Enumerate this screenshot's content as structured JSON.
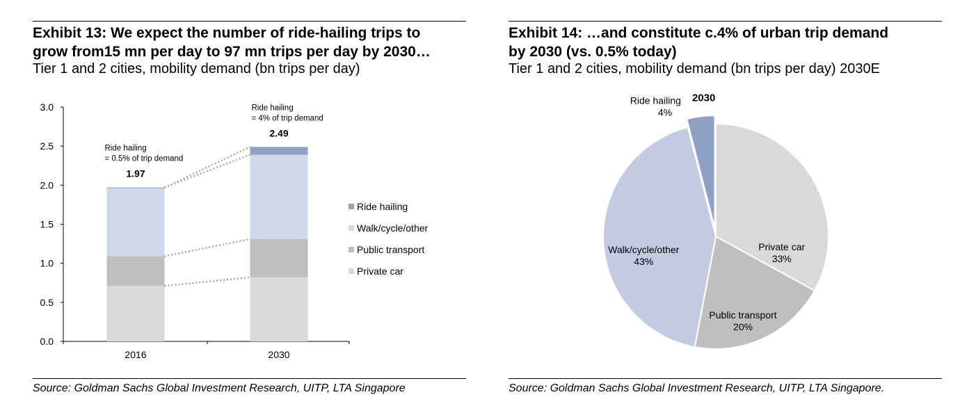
{
  "left": {
    "title_line1": "Exhibit 13: We expect the number of ride-hailing trips to",
    "title_line2": "grow from15 mn per day to 97 mn trips per day by 2030…",
    "subtitle": "Tier 1 and 2 cities, mobility demand (bn trips per day)",
    "source": "Source: Goldman Sachs Global Investment Research, UITP, LTA Singapore"
  },
  "right": {
    "title_line1": "Exhibit 14: …and constitute c.4% of urban trip demand",
    "title_line2": "by 2030 (vs. 0.5% today)",
    "subtitle": "Tier 1 and 2 cities, mobility demand (bn trips per day) 2030E",
    "source": "Source: Goldman Sachs Global Investment Research, UITP, LTA Singapore."
  },
  "chart_data": [
    {
      "type": "bar",
      "stacked": true,
      "categories": [
        "2016",
        "2030"
      ],
      "series": [
        {
          "name": "Private car",
          "values": [
            0.71,
            0.82
          ],
          "color": "#d9d9d9"
        },
        {
          "name": "Public transport",
          "values": [
            0.38,
            0.49
          ],
          "color": "#bfbfbf"
        },
        {
          "name": "Walk/cycle/other",
          "values": [
            0.87,
            1.08
          ],
          "color": "#d2d8ec"
        },
        {
          "name": "Ride hailing",
          "values": [
            0.01,
            0.1
          ],
          "color": "#8ea0c4"
        }
      ],
      "totals": [
        "1.97",
        "2.49"
      ],
      "annotations": [
        {
          "line1": "Ride hailing",
          "line2": "= 0.5% of trip demand"
        },
        {
          "line1": "Ride hailing",
          "line2": "= 4% of trip demand"
        }
      ],
      "legend_order": [
        "Ride hailing",
        "Walk/cycle/other",
        "Public transport",
        "Private car"
      ],
      "legend_position": "right",
      "yticks": [
        "0.0",
        "0.5",
        "1.0",
        "1.5",
        "2.0",
        "2.5",
        "3.0"
      ],
      "ylim": [
        0,
        3.0
      ],
      "xlabel": "",
      "ylabel": "",
      "connector_color": "#a6a6a6"
    },
    {
      "type": "pie",
      "title": "2030",
      "slices": [
        {
          "label": "Private car",
          "value": 33,
          "pct": "33%",
          "color": "#d9d9d9"
        },
        {
          "label": "Public transport",
          "value": 20,
          "pct": "20%",
          "color": "#bfbfbf"
        },
        {
          "label": "Walk/cycle/other",
          "value": 43,
          "pct": "43%",
          "color": "#c3cbe1"
        },
        {
          "label": "Ride hailing",
          "value": 4,
          "pct": "4%",
          "color": "#8ea0c4",
          "exploded": true
        }
      ]
    }
  ]
}
